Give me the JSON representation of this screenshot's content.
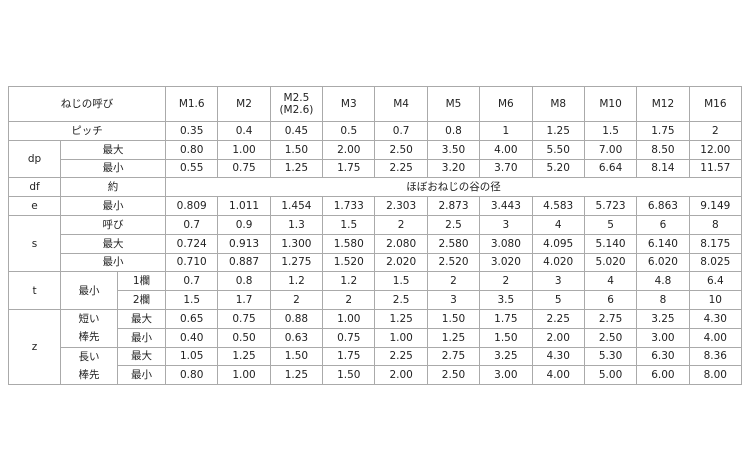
{
  "header": {
    "label": "ねじの呼び",
    "sizes": [
      "M1.6",
      "M2",
      "M2.5\n(M2.6)",
      "M3",
      "M4",
      "M5",
      "M6",
      "M8",
      "M10",
      "M12",
      "M16"
    ]
  },
  "rows": {
    "pitch": {
      "label": "ピッチ",
      "values": [
        "0.35",
        "0.4",
        "0.45",
        "0.5",
        "0.7",
        "0.8",
        "1",
        "1.25",
        "1.5",
        "1.75",
        "2"
      ]
    },
    "dp": {
      "label": "dp",
      "max": {
        "label": "最大",
        "values": [
          "0.80",
          "1.00",
          "1.50",
          "2.00",
          "2.50",
          "3.50",
          "4.00",
          "5.50",
          "7.00",
          "8.50",
          "12.00"
        ]
      },
      "min": {
        "label": "最小",
        "values": [
          "0.55",
          "0.75",
          "1.25",
          "1.75",
          "2.25",
          "3.20",
          "3.70",
          "5.20",
          "6.64",
          "8.14",
          "11.57"
        ]
      }
    },
    "df": {
      "label": "df",
      "sub": "約",
      "value": "ほぼおねじの谷の径"
    },
    "e": {
      "label": "e",
      "sub": "最小",
      "values": [
        "0.809",
        "1.011",
        "1.454",
        "1.733",
        "2.303",
        "2.873",
        "3.443",
        "4.583",
        "5.723",
        "6.863",
        "9.149"
      ]
    },
    "s": {
      "label": "s",
      "nom": {
        "label": "呼び",
        "values": [
          "0.7",
          "0.9",
          "1.3",
          "1.5",
          "2",
          "2.5",
          "3",
          "4",
          "5",
          "6",
          "8"
        ]
      },
      "max": {
        "label": "最大",
        "values": [
          "0.724",
          "0.913",
          "1.300",
          "1.580",
          "2.080",
          "2.580",
          "3.080",
          "4.095",
          "5.140",
          "6.140",
          "8.175"
        ]
      },
      "min": {
        "label": "最小",
        "values": [
          "0.710",
          "0.887",
          "1.275",
          "1.520",
          "2.020",
          "2.520",
          "3.020",
          "4.020",
          "5.020",
          "6.020",
          "8.025"
        ]
      }
    },
    "t": {
      "label": "t",
      "sub": "最小",
      "col1": {
        "label": "1欄",
        "values": [
          "0.7",
          "0.8",
          "1.2",
          "1.2",
          "1.5",
          "2",
          "2",
          "3",
          "4",
          "4.8",
          "6.4"
        ]
      },
      "col2": {
        "label": "2欄",
        "values": [
          "1.5",
          "1.7",
          "2",
          "2",
          "2.5",
          "3",
          "3.5",
          "5",
          "6",
          "8",
          "10"
        ]
      }
    },
    "z": {
      "label": "z",
      "short": {
        "label1": "短い",
        "label2": "棒先",
        "max": {
          "label": "最大",
          "values": [
            "0.65",
            "0.75",
            "0.88",
            "1.00",
            "1.25",
            "1.50",
            "1.75",
            "2.25",
            "2.75",
            "3.25",
            "4.30"
          ]
        },
        "min": {
          "label": "最小",
          "values": [
            "0.40",
            "0.50",
            "0.63",
            "0.75",
            "1.00",
            "1.25",
            "1.50",
            "2.00",
            "2.50",
            "3.00",
            "4.00"
          ]
        }
      },
      "long": {
        "label1": "長い",
        "label2": "棒先",
        "max": {
          "label": "最大",
          "values": [
            "1.05",
            "1.25",
            "1.50",
            "1.75",
            "2.25",
            "2.75",
            "3.25",
            "4.30",
            "5.30",
            "6.30",
            "8.36"
          ]
        },
        "min": {
          "label": "最小",
          "values": [
            "0.80",
            "1.00",
            "1.25",
            "1.50",
            "2.00",
            "2.50",
            "3.00",
            "4.00",
            "5.00",
            "6.00",
            "8.00"
          ]
        }
      }
    }
  }
}
